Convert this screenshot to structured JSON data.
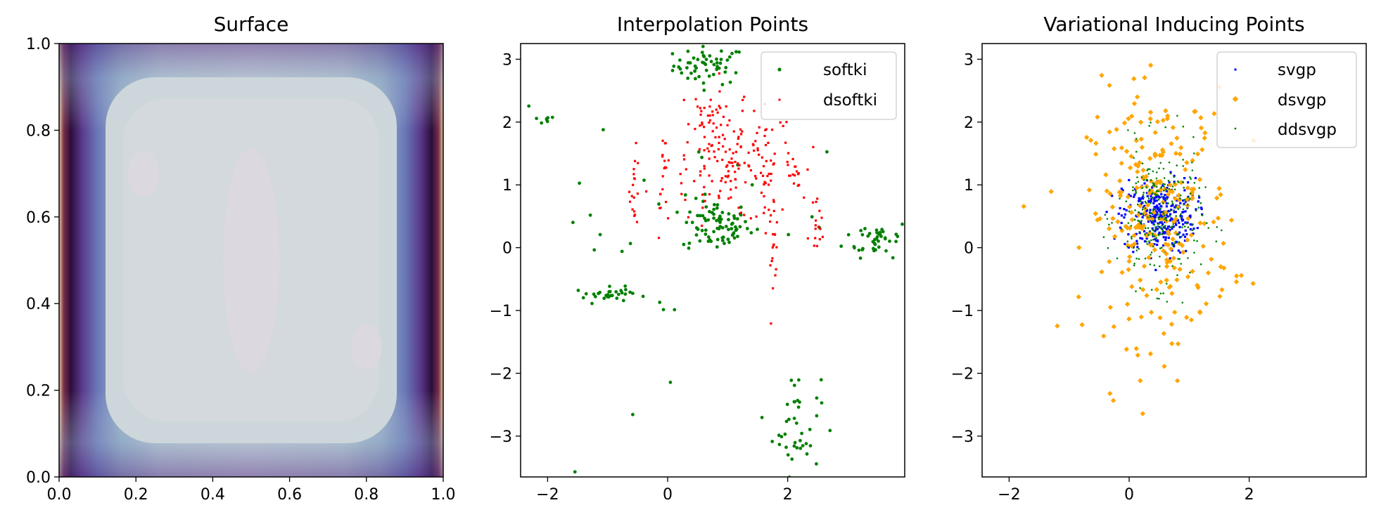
{
  "chart_data": [
    {
      "type": "heatmap",
      "title": "Surface",
      "xlim": [
        0,
        1
      ],
      "ylim": [
        0,
        1
      ],
      "xticks": [
        "0.0",
        "0.2",
        "0.4",
        "0.6",
        "0.8",
        "1.0"
      ],
      "yticks": [
        "0.0",
        "0.2",
        "0.4",
        "0.6",
        "0.8",
        "1.0"
      ],
      "colormap": "twilight",
      "description_levels": "filled contours, dark purple near x=0 and x=1 edges, light gray interior",
      "interior_blobs": [
        {
          "x": 0.22,
          "y": 0.7
        },
        {
          "x": 0.5,
          "y": 0.5
        },
        {
          "x": 0.8,
          "y": 0.3
        }
      ]
    },
    {
      "type": "scatter",
      "title": "Interpolation Points",
      "xlim": [
        -2.45,
        3.95
      ],
      "ylim": [
        -3.65,
        3.25
      ],
      "xticks": [
        "−2",
        "0",
        "2"
      ],
      "yticks": [
        "−3",
        "−2",
        "−1",
        "0",
        "1",
        "2",
        "3"
      ],
      "legend_position": "top-right",
      "series": [
        {
          "name": "softki",
          "color": "#008000",
          "clusters": [
            {
              "cx": 0.7,
              "cy": 2.9,
              "sx": 0.3,
              "sy": 0.15,
              "n": 55
            },
            {
              "cx": -2.1,
              "cy": 2.03,
              "sx": 0.12,
              "sy": 0.03,
              "n": 7
            },
            {
              "cx": 0.8,
              "cy": 0.35,
              "sx": 0.28,
              "sy": 0.2,
              "n": 80
            },
            {
              "cx": 3.5,
              "cy": 0.15,
              "sx": 0.28,
              "sy": 0.15,
              "n": 45
            },
            {
              "cx": -0.95,
              "cy": -0.75,
              "sx": 0.3,
              "sy": 0.06,
              "n": 30
            },
            {
              "cx": 2.15,
              "cy": -2.8,
              "sx": 0.2,
              "sy": 0.4,
              "n": 40
            },
            {
              "cx": 0.0,
              "cy": 0.5,
              "sx": 1.5,
              "sy": 1.2,
              "n": 30
            }
          ]
        },
        {
          "name": "dsoftki",
          "color": "#ff0000",
          "clusters": [
            {
              "cx": 1.1,
              "cy": 1.3,
              "sx": 0.55,
              "sy": 0.45,
              "n": 170
            },
            {
              "cx": 0.7,
              "cy": 2.2,
              "sx": 0.15,
              "sy": 0.15,
              "n": 20
            },
            {
              "cx": -0.55,
              "cy": 0.95,
              "sx": 0.04,
              "sy": 0.3,
              "n": 18
            },
            {
              "cx": -0.05,
              "cy": 1.25,
              "sx": 0.05,
              "sy": 0.3,
              "n": 14
            },
            {
              "cx": 1.75,
              "cy": 0.2,
              "sx": 0.05,
              "sy": 0.35,
              "n": 22
            },
            {
              "cx": 2.08,
              "cy": 1.1,
              "sx": 0.08,
              "sy": 0.18,
              "n": 15
            },
            {
              "cx": 2.5,
              "cy": 0.4,
              "sx": 0.05,
              "sy": 0.22,
              "n": 15
            }
          ]
        }
      ]
    },
    {
      "type": "scatter",
      "title": "Variational Inducing Points",
      "xlim": [
        -2.45,
        3.95
      ],
      "ylim": [
        -3.65,
        3.25
      ],
      "xticks": [
        "−2",
        "0",
        "2"
      ],
      "yticks": [
        "−3",
        "−2",
        "−1",
        "0",
        "1",
        "2",
        "3"
      ],
      "legend_position": "top-right",
      "series": [
        {
          "name": "svgp",
          "color": "#0000ff",
          "clusters": [
            {
              "cx": 0.5,
              "cy": 0.5,
              "sx": 0.3,
              "sy": 0.3,
              "n": 320
            }
          ]
        },
        {
          "name": "dsvgp",
          "color": "#ffa500",
          "clusters": [
            {
              "cx": 0.5,
              "cy": 0.5,
              "sx": 0.6,
              "sy": 1.0,
              "n": 260
            }
          ]
        },
        {
          "name": "ddsvgp",
          "color": "#008000",
          "clusters": [
            {
              "cx": 0.5,
              "cy": 0.5,
              "sx": 0.35,
              "sy": 0.55,
              "n": 260
            }
          ]
        }
      ]
    }
  ]
}
